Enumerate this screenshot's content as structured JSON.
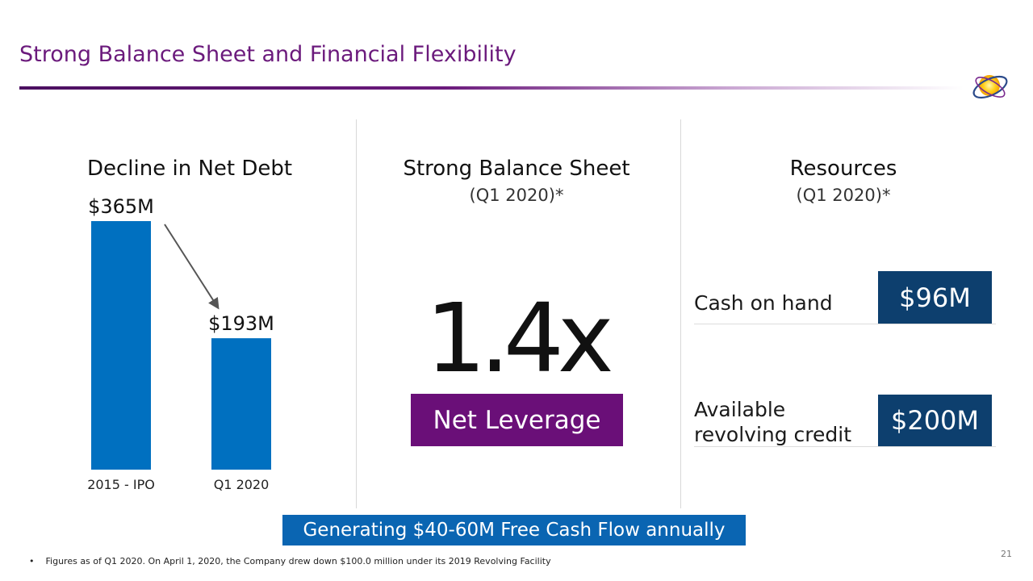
{
  "slide": {
    "title": "Strong Balance Sheet and Financial Flexibility",
    "page_number": "21",
    "footnote": "Figures as of Q1 2020. On April 1, 2020, the Company drew down $100.0 million under its 2019 Revolving Facility",
    "banner": "Generating $40-60M Free Cash Flow annually",
    "colors": {
      "title": "#6b1a7c",
      "bar": "#0070c0",
      "pill": "#6a0f78",
      "resource_box": "#0d3f6e",
      "banner": "#0a65b2"
    }
  },
  "net_debt": {
    "heading": "Decline in Net Debt"
  },
  "balance_sheet": {
    "heading": "Strong Balance Sheet",
    "subheading": "(Q1 2020)*",
    "value": "1.4x",
    "label": "Net Leverage"
  },
  "resources": {
    "heading": "Resources",
    "subheading": "(Q1 2020)*",
    "items": [
      {
        "label": "Cash on hand",
        "value": "$96M"
      },
      {
        "label": "Available revolving credit",
        "value": "$200M"
      }
    ]
  },
  "chart_data": {
    "type": "bar",
    "title": "Decline in Net Debt",
    "categories": [
      "2015 - IPO",
      "Q1 2020"
    ],
    "values": [
      365,
      193
    ],
    "data_labels": [
      "$365M",
      "$193M"
    ],
    "unit": "$M",
    "ylim": [
      0,
      365
    ],
    "grid": false,
    "annotation": "arrow from first bar to second bar indicating decline"
  }
}
